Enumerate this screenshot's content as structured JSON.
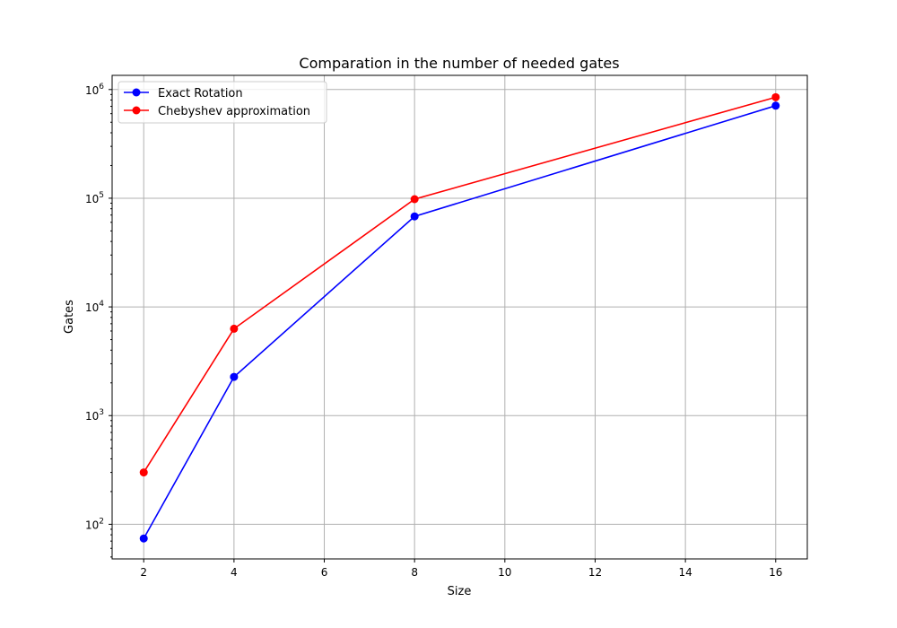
{
  "chart_data": {
    "type": "line",
    "title": "Comparation in the number of needed gates",
    "xlabel": "Size",
    "ylabel": "Gates",
    "x": [
      2,
      4,
      8,
      16
    ],
    "xlim": [
      1.3,
      16.7
    ],
    "xticks": [
      2,
      4,
      6,
      8,
      10,
      12,
      14,
      16
    ],
    "yscale": "log",
    "ylim": [
      48,
      1350000
    ],
    "yticks": [
      {
        "value": 100,
        "base": "10",
        "exp": "2"
      },
      {
        "value": 1000,
        "base": "10",
        "exp": "3"
      },
      {
        "value": 10000,
        "base": "10",
        "exp": "4"
      },
      {
        "value": 100000,
        "base": "10",
        "exp": "5"
      },
      {
        "value": 1000000,
        "base": "10",
        "exp": "6"
      }
    ],
    "grid": true,
    "legend_position": "top-left",
    "series": [
      {
        "name": "Exact Rotation",
        "color": "#0000ff",
        "values": [
          74,
          2270,
          68000,
          710000
        ]
      },
      {
        "name": "Chebyshev approximation",
        "color": "#ff0000",
        "values": [
          300,
          6300,
          98000,
          850000
        ]
      }
    ]
  }
}
